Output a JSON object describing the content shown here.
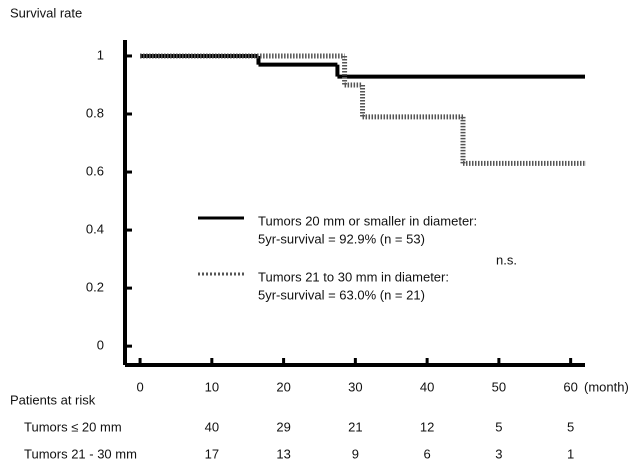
{
  "chart_data": {
    "type": "step",
    "y_label": "Survival rate",
    "x_label": "(month)",
    "annotation": "n.s.",
    "xlim": [
      -2.1,
      62
    ],
    "ylim": [
      -0.065,
      1.055
    ],
    "xticks": [
      0,
      10,
      20,
      30,
      40,
      50,
      60
    ],
    "yticks": [
      0,
      0.2,
      0.4,
      0.6,
      0.8,
      1
    ],
    "series": [
      {
        "name": "Tumors 20 mm or smaller in diameter:",
        "note": "5yr-survival = 92.9% (n = 53)",
        "color": "#000000",
        "style": "solid",
        "x": [
          0,
          16.5,
          27.5,
          62
        ],
        "values": [
          1,
          0.97,
          0.929,
          0.929
        ]
      },
      {
        "name": "Tumors 21 to 30 mm in diameter:",
        "note": "5yr-survival = 63.0% (n = 21)",
        "color": "#555555",
        "style": "dotted",
        "x": [
          0,
          28.5,
          31,
          45,
          62
        ],
        "values": [
          1,
          0.9,
          0.79,
          0.63,
          0.63
        ]
      }
    ],
    "risk_table": {
      "title": "Patients at risk",
      "rows": [
        {
          "label": "Tumors ≤ 20 mm",
          "counts": [
            40,
            29,
            21,
            12,
            5,
            5
          ]
        },
        {
          "label": "Tumors 21 - 30 mm",
          "counts": [
            17,
            13,
            9,
            6,
            3,
            1
          ]
        }
      ]
    }
  }
}
